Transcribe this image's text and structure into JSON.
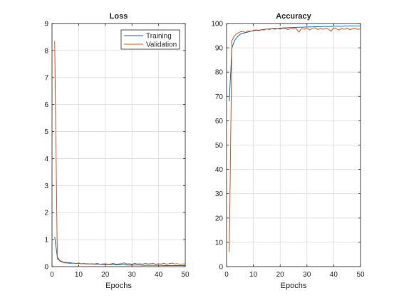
{
  "chart_data": [
    {
      "type": "line",
      "title": "Loss",
      "xlabel": "Epochs",
      "ylabel": "",
      "xlim": [
        0,
        50
      ],
      "ylim": [
        0,
        9
      ],
      "xticks": [
        0,
        10,
        20,
        30,
        40,
        50
      ],
      "yticks": [
        0,
        1,
        2,
        3,
        4,
        5,
        6,
        7,
        8,
        9
      ],
      "grid": true,
      "legend": "top-right",
      "x": [
        1,
        2,
        3,
        4,
        5,
        6,
        7,
        8,
        9,
        10,
        11,
        12,
        13,
        14,
        15,
        16,
        17,
        18,
        19,
        20,
        21,
        22,
        23,
        24,
        25,
        26,
        27,
        28,
        29,
        30,
        31,
        32,
        33,
        34,
        35,
        36,
        37,
        38,
        39,
        40,
        41,
        42,
        43,
        44,
        45,
        46,
        47,
        48,
        49,
        50
      ],
      "series": [
        {
          "name": "Training",
          "color": "#0072BD",
          "values": [
            1.1,
            0.35,
            0.22,
            0.18,
            0.16,
            0.15,
            0.14,
            0.13,
            0.12,
            0.12,
            0.11,
            0.11,
            0.1,
            0.1,
            0.1,
            0.09,
            0.09,
            0.09,
            0.08,
            0.08,
            0.08,
            0.08,
            0.07,
            0.07,
            0.07,
            0.07,
            0.07,
            0.06,
            0.06,
            0.06,
            0.06,
            0.06,
            0.06,
            0.05,
            0.05,
            0.05,
            0.05,
            0.05,
            0.05,
            0.05,
            0.05,
            0.04,
            0.04,
            0.04,
            0.04,
            0.04,
            0.04,
            0.04,
            0.04,
            0.04
          ]
        },
        {
          "name": "Validation",
          "color": "#D95319",
          "values": [
            8.35,
            0.3,
            0.2,
            0.16,
            0.14,
            0.13,
            0.12,
            0.13,
            0.11,
            0.14,
            0.1,
            0.12,
            0.11,
            0.1,
            0.11,
            0.1,
            0.12,
            0.09,
            0.1,
            0.11,
            0.09,
            0.1,
            0.12,
            0.09,
            0.1,
            0.11,
            0.14,
            0.1,
            0.11,
            0.09,
            0.12,
            0.1,
            0.11,
            0.09,
            0.12,
            0.1,
            0.11,
            0.12,
            0.09,
            0.11,
            0.1,
            0.12,
            0.09,
            0.11,
            0.13,
            0.1,
            0.11,
            0.09,
            0.1,
            0.1
          ]
        }
      ]
    },
    {
      "type": "line",
      "title": "Accuracy",
      "xlabel": "Epochs",
      "ylabel": "",
      "xlim": [
        0,
        50
      ],
      "ylim": [
        0,
        100
      ],
      "xticks": [
        0,
        10,
        20,
        30,
        40,
        50
      ],
      "yticks": [
        0,
        10,
        20,
        30,
        40,
        50,
        60,
        70,
        80,
        90,
        100
      ],
      "grid": true,
      "x": [
        1,
        2,
        3,
        4,
        5,
        6,
        7,
        8,
        9,
        10,
        11,
        12,
        13,
        14,
        15,
        16,
        17,
        18,
        19,
        20,
        21,
        22,
        23,
        24,
        25,
        26,
        27,
        28,
        29,
        30,
        31,
        32,
        33,
        34,
        35,
        36,
        37,
        38,
        39,
        40,
        41,
        42,
        43,
        44,
        45,
        46,
        47,
        48,
        49,
        50
      ],
      "series": [
        {
          "name": "Training",
          "color": "#0072BD",
          "values": [
            68,
            90,
            93,
            94.5,
            95.5,
            96,
            96.2,
            96.5,
            96.8,
            97,
            97.2,
            97.3,
            97.4,
            97.6,
            97.7,
            97.8,
            97.9,
            98,
            98,
            98.1,
            98.2,
            98.2,
            98.3,
            98.3,
            98.4,
            98.4,
            98.5,
            98.5,
            98.5,
            98.6,
            98.6,
            98.6,
            98.7,
            98.7,
            98.7,
            98.8,
            98.8,
            98.8,
            98.8,
            98.9,
            98.9,
            98.9,
            98.9,
            99,
            99,
            99,
            99,
            99,
            99,
            99
          ]
        },
        {
          "name": "Validation",
          "color": "#D95319",
          "values": [
            6,
            93,
            95,
            96,
            96.5,
            96.8,
            96.3,
            97,
            96.8,
            97.2,
            97.4,
            97,
            97.5,
            97.3,
            97.8,
            97.5,
            97.9,
            97.6,
            98,
            97.7,
            98.1,
            97.9,
            97.5,
            98.2,
            97.8,
            97.9,
            96.5,
            98,
            97.6,
            98.2,
            97.4,
            97.9,
            98.3,
            97.5,
            98,
            97.6,
            98.1,
            97.7,
            96.8,
            98.2,
            97.8,
            97.3,
            98,
            97.6,
            98.1,
            97.4,
            97.9,
            98,
            97.6,
            97.8
          ]
        }
      ]
    }
  ]
}
